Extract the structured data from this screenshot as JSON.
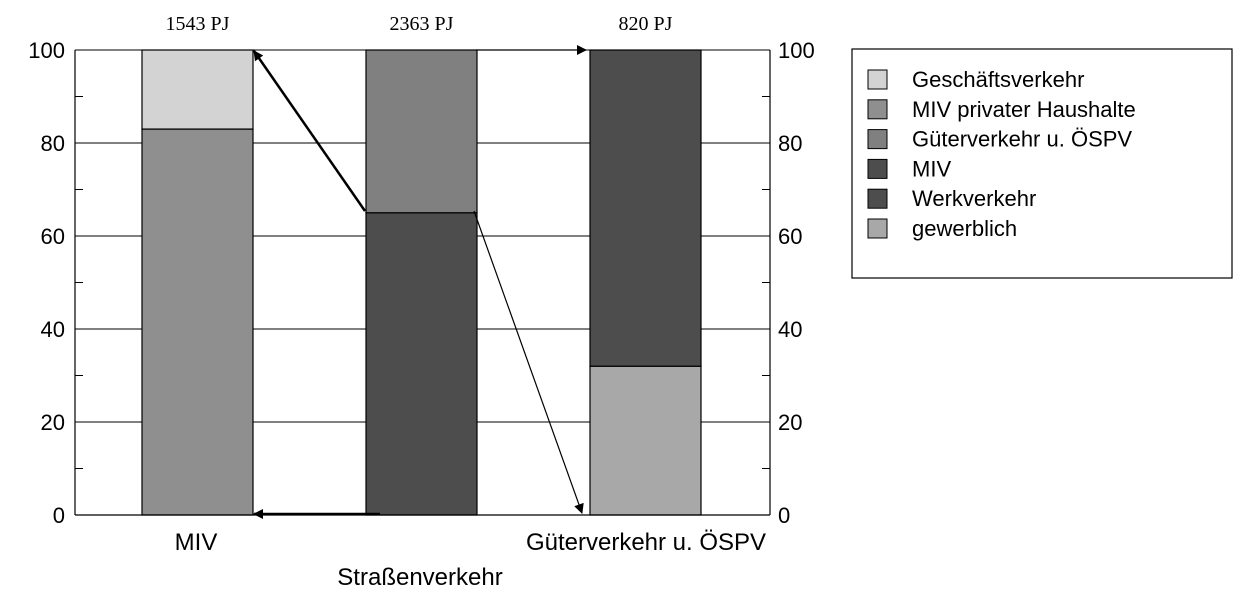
{
  "chart_data": {
    "type": "bar",
    "stacked": true,
    "categories": [
      "MIV",
      "Straßenverkehr",
      "Güterverkehr u. ÖSPV"
    ],
    "totals": [
      "1543 PJ",
      "2363 PJ",
      "820 PJ"
    ],
    "ylim": [
      0,
      100
    ],
    "yticks": [
      "0",
      "20",
      "40",
      "60",
      "80",
      "100"
    ],
    "grid": true,
    "legend_position": "right",
    "series": [
      {
        "name": "Geschäftsverkehr",
        "values": [
          17,
          0,
          0
        ],
        "color": "#d3d3d3"
      },
      {
        "name": "MIV privater Haushalte",
        "values": [
          83,
          0,
          0
        ],
        "color": "#8f8f8f"
      },
      {
        "name": "Güterverkehr u. ÖSPV",
        "values": [
          0,
          35,
          0
        ],
        "color": "#808080"
      },
      {
        "name": "MIV",
        "values": [
          0,
          65,
          0
        ],
        "color": "#4d4d4d"
      },
      {
        "name": "Werkverkehr",
        "values": [
          0,
          0,
          68
        ],
        "color": "#4d4d4d"
      },
      {
        "name": "gewerblich",
        "values": [
          0,
          0,
          32
        ],
        "color": "#a8a8a8"
      }
    ],
    "stacks": [
      [
        {
          "series": 1,
          "value": 83
        },
        {
          "series": 0,
          "value": 17
        }
      ],
      [
        {
          "series": 3,
          "value": 65
        },
        {
          "series": 2,
          "value": 35
        }
      ],
      [
        {
          "series": 5,
          "value": 32
        },
        {
          "series": 4,
          "value": 68
        }
      ]
    ]
  }
}
